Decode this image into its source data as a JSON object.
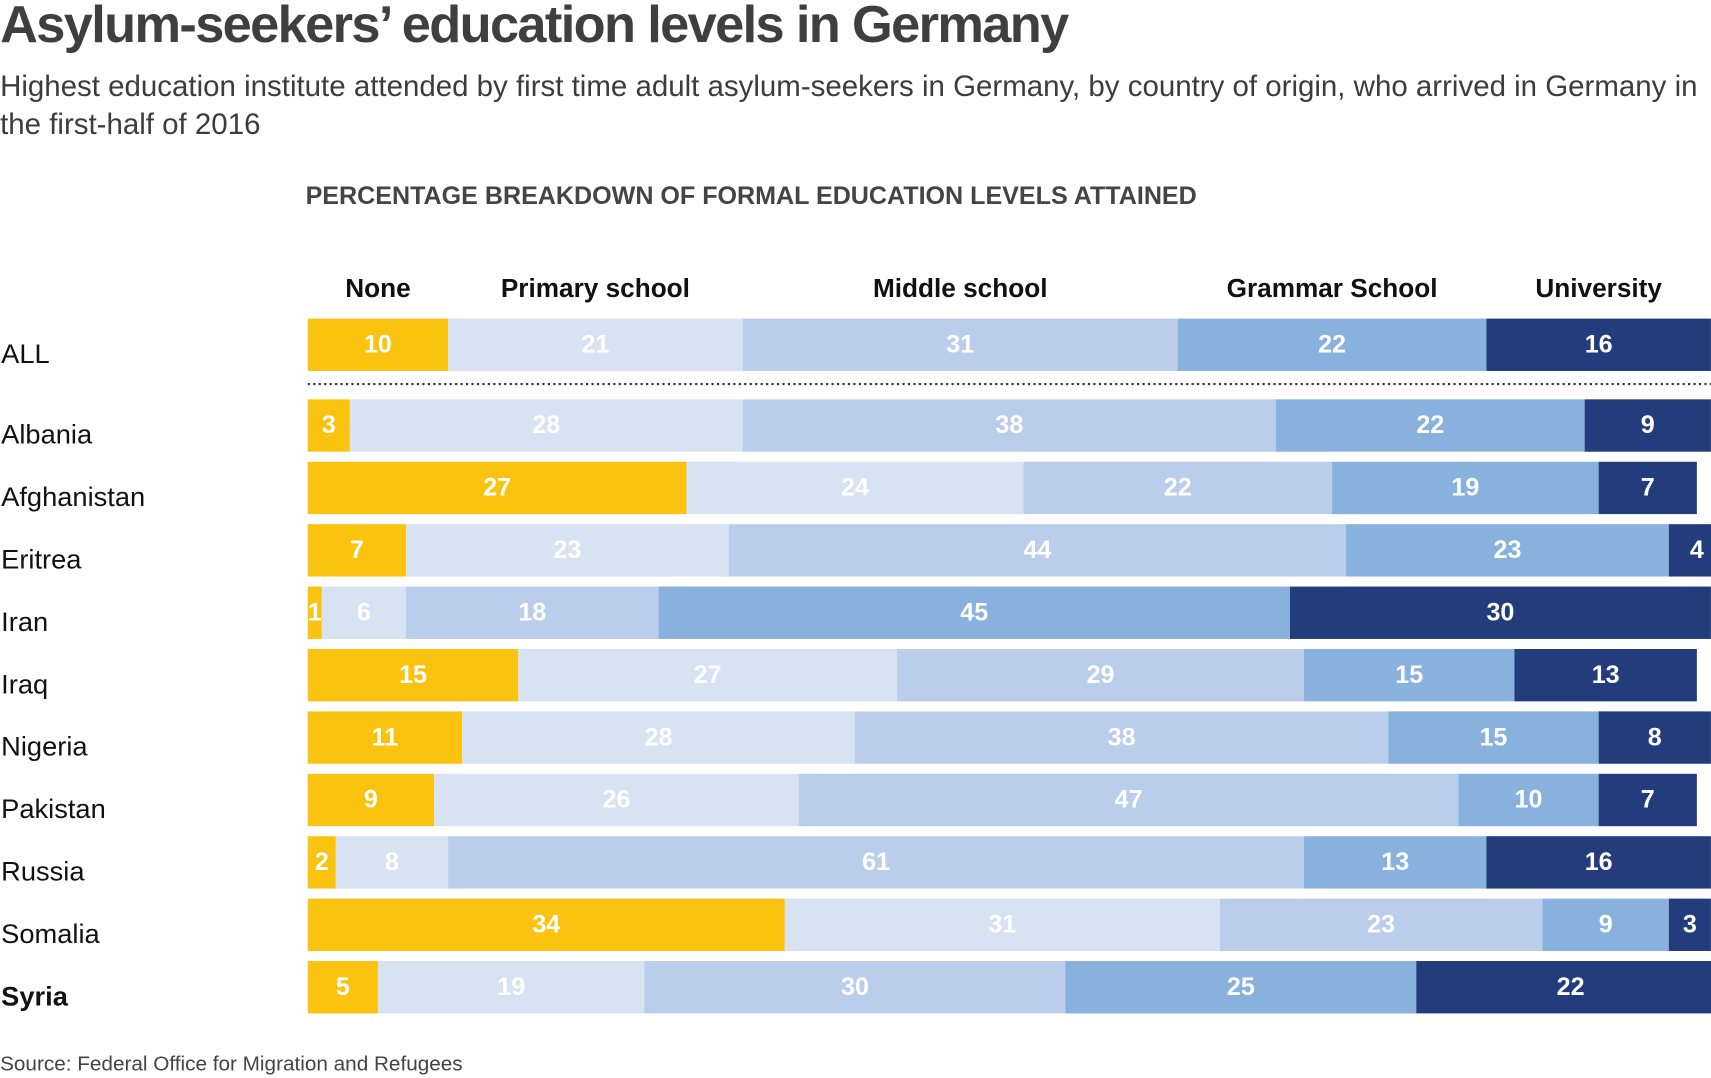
{
  "chart_data": {
    "type": "stacked-bar-horizontal",
    "title": "Asylum-seekers’ education levels in Germany",
    "subtitle": "Highest education institute attended by first time adult asylum-seekers in Germany, by country of origin, who arrived in Germany in the first-half of 2016",
    "heading": "PERCENTAGE BREAKDOWN OF FORMAL EDUCATION LEVELS ATTAINED",
    "source": "Source: Federal Office for Migration and Refugees",
    "categories": [
      "ALL",
      "Albania",
      "Afghanistan",
      "Eritrea",
      "Iran",
      "Iraq",
      "Nigeria",
      "Pakistan",
      "Russia",
      "Somalia",
      "Syria"
    ],
    "highlight_index": 10,
    "xlim": [
      0,
      100
    ],
    "series": [
      {
        "name": "None",
        "color": "#f9c30f",
        "label_color": "#ffffff",
        "values": [
          10,
          3,
          27,
          7,
          1,
          15,
          11,
          9,
          2,
          34,
          5
        ]
      },
      {
        "name": "Primary school",
        "color": "#d7e2f3",
        "label_color": "#ffffff",
        "values": [
          21,
          28,
          24,
          23,
          6,
          27,
          28,
          26,
          8,
          31,
          19
        ]
      },
      {
        "name": "Middle school",
        "color": "#bacdeb",
        "label_color": "#ffffff",
        "values": [
          31,
          38,
          22,
          44,
          18,
          29,
          38,
          47,
          61,
          23,
          30
        ]
      },
      {
        "name": "Grammar School",
        "color": "#88b1de",
        "label_color": "#ffffff",
        "values": [
          22,
          22,
          19,
          23,
          45,
          15,
          15,
          10,
          13,
          9,
          25
        ]
      },
      {
        "name": "University",
        "color": "#233c7b",
        "label_color": "#ffffff",
        "values": [
          16,
          9,
          7,
          4,
          30,
          13,
          8,
          7,
          16,
          3,
          22
        ]
      }
    ]
  }
}
